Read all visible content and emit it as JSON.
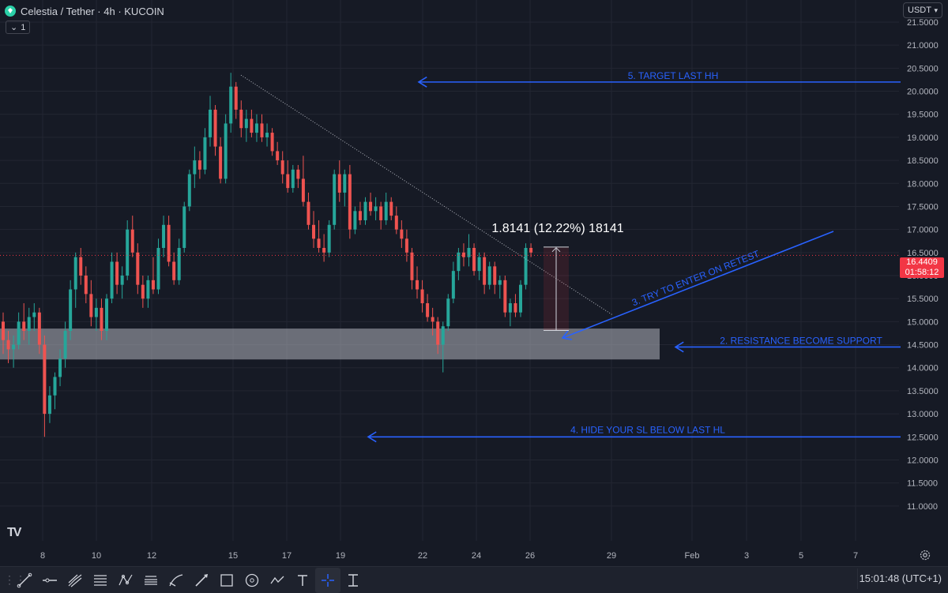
{
  "header": {
    "symbol": "Celestia / Tether · 4h · KUCOIN",
    "indicator_count": "1",
    "currency": "USDT"
  },
  "price_tag": {
    "price": "16.4409",
    "countdown": "01:58:12"
  },
  "annotations": {
    "target": "5. TARGET LAST HH",
    "retest": "3. TRY TO ENTER ON RETEST",
    "support": "2. RESISTANCE BECOME SUPPORT",
    "stoploss": "4. HIDE YOUR SL BELOW LAST HL",
    "measure": "1.8141 (12.22%) 18141"
  },
  "clock": "15:01:48 (UTC+1)",
  "colors": {
    "background": "#161a25",
    "up": "#26a69a",
    "down": "#ef5350",
    "annotation": "#2962ff",
    "zone": "#b2b5be"
  },
  "toolbar": {
    "tools": [
      "trend-line-icon",
      "horizontal-line-icon",
      "pitchfork-icon",
      "fib-icon",
      "pattern-icon",
      "brush-icon",
      "long-position-icon",
      "measure-icon",
      "arrow-icon",
      "rectangle-icon",
      "ellipse-icon",
      "path-icon",
      "text-icon",
      "crosshair-icon",
      "date-range-icon"
    ]
  },
  "chart_data": {
    "type": "candlestick",
    "y_axis": {
      "min": 10.5,
      "max": 21.5,
      "ticks": [
        "11.0000",
        "11.5000",
        "12.0000",
        "12.5000",
        "13.0000",
        "13.5000",
        "14.0000",
        "14.5000",
        "15.0000",
        "15.5000",
        "16.0000",
        "16.5000",
        "17.0000",
        "17.5000",
        "18.0000",
        "18.5000",
        "19.0000",
        "19.5000",
        "20.0000",
        "20.5000",
        "21.0000",
        "21.5000"
      ]
    },
    "x_axis": {
      "ticks": [
        "8",
        "10",
        "12",
        "15",
        "17",
        "19",
        "22",
        "24",
        "26",
        "29",
        "Feb",
        "3",
        "5",
        "7"
      ]
    },
    "ohlc": [
      [
        15.0,
        15.2,
        14.3,
        14.6
      ],
      [
        14.6,
        14.8,
        14.1,
        14.4
      ],
      [
        14.4,
        14.7,
        14.0,
        14.5
      ],
      [
        14.5,
        15.2,
        14.4,
        15.0
      ],
      [
        15.0,
        15.4,
        14.6,
        14.8
      ],
      [
        14.8,
        15.3,
        14.5,
        15.1
      ],
      [
        15.1,
        15.4,
        14.8,
        15.2
      ],
      [
        15.2,
        15.3,
        14.3,
        14.5
      ],
      [
        14.5,
        14.7,
        12.5,
        13.0
      ],
      [
        13.0,
        13.6,
        12.8,
        13.4
      ],
      [
        13.4,
        13.9,
        13.1,
        13.8
      ],
      [
        13.8,
        14.4,
        13.6,
        14.2
      ],
      [
        14.2,
        15.0,
        14.0,
        14.8
      ],
      [
        14.8,
        15.9,
        14.6,
        15.7
      ],
      [
        15.7,
        16.5,
        15.3,
        16.4
      ],
      [
        16.4,
        16.6,
        15.8,
        16.0
      ],
      [
        16.0,
        16.2,
        15.4,
        15.6
      ],
      [
        15.6,
        15.9,
        14.9,
        15.1
      ],
      [
        15.1,
        15.5,
        14.8,
        15.3
      ],
      [
        15.3,
        15.5,
        14.6,
        14.8
      ],
      [
        14.8,
        15.6,
        14.6,
        15.5
      ],
      [
        15.5,
        16.5,
        15.4,
        16.3
      ],
      [
        16.3,
        16.5,
        15.6,
        15.8
      ],
      [
        15.8,
        16.2,
        15.5,
        16.0
      ],
      [
        16.0,
        17.2,
        15.9,
        17.0
      ],
      [
        17.0,
        17.3,
        16.4,
        16.5
      ],
      [
        16.5,
        16.7,
        15.6,
        15.8
      ],
      [
        15.8,
        16.0,
        15.3,
        15.5
      ],
      [
        15.5,
        16.0,
        15.3,
        15.9
      ],
      [
        15.9,
        16.4,
        15.6,
        15.7
      ],
      [
        15.7,
        16.8,
        15.6,
        16.6
      ],
      [
        16.6,
        17.3,
        16.4,
        17.1
      ],
      [
        17.1,
        17.3,
        16.2,
        16.3
      ],
      [
        16.3,
        16.5,
        15.8,
        15.9
      ],
      [
        15.9,
        16.8,
        15.8,
        16.6
      ],
      [
        16.6,
        17.6,
        16.5,
        17.5
      ],
      [
        17.5,
        18.3,
        17.4,
        18.2
      ],
      [
        18.2,
        18.8,
        17.9,
        18.5
      ],
      [
        18.5,
        18.7,
        18.1,
        18.3
      ],
      [
        18.3,
        19.2,
        18.2,
        19.0
      ],
      [
        19.0,
        19.9,
        18.8,
        19.6
      ],
      [
        19.6,
        19.7,
        18.6,
        18.8
      ],
      [
        18.8,
        19.0,
        18.0,
        18.1
      ],
      [
        18.1,
        19.5,
        18.0,
        19.3
      ],
      [
        19.3,
        20.4,
        19.1,
        20.1
      ],
      [
        20.1,
        20.2,
        19.4,
        19.6
      ],
      [
        19.6,
        19.8,
        19.0,
        19.2
      ],
      [
        19.2,
        19.6,
        18.9,
        19.4
      ],
      [
        19.4,
        19.6,
        19.0,
        19.1
      ],
      [
        19.1,
        19.5,
        18.9,
        19.3
      ],
      [
        19.3,
        19.5,
        18.9,
        19.0
      ],
      [
        19.0,
        19.3,
        18.8,
        19.1
      ],
      [
        19.1,
        19.2,
        18.6,
        18.7
      ],
      [
        18.7,
        18.9,
        18.4,
        18.5
      ],
      [
        18.5,
        18.7,
        18.0,
        18.2
      ],
      [
        18.2,
        18.5,
        17.8,
        17.9
      ],
      [
        17.9,
        18.4,
        17.8,
        18.3
      ],
      [
        18.3,
        18.4,
        17.9,
        18.1
      ],
      [
        18.1,
        18.6,
        17.5,
        17.6
      ],
      [
        17.6,
        17.8,
        17.0,
        17.1
      ],
      [
        17.1,
        17.4,
        16.6,
        16.8
      ],
      [
        16.8,
        17.2,
        16.5,
        16.6
      ],
      [
        16.6,
        16.9,
        16.3,
        16.5
      ],
      [
        16.5,
        17.2,
        16.4,
        17.1
      ],
      [
        17.1,
        18.3,
        17.0,
        18.2
      ],
      [
        18.2,
        18.5,
        17.6,
        17.8
      ],
      [
        17.8,
        18.3,
        17.5,
        18.2
      ],
      [
        18.2,
        18.4,
        16.8,
        17.0
      ],
      [
        17.0,
        17.5,
        16.9,
        17.4
      ],
      [
        17.4,
        17.6,
        17.1,
        17.2
      ],
      [
        17.2,
        17.7,
        17.1,
        17.6
      ],
      [
        17.6,
        17.8,
        17.3,
        17.4
      ],
      [
        17.4,
        17.7,
        17.2,
        17.5
      ],
      [
        17.5,
        17.6,
        17.0,
        17.2
      ],
      [
        17.2,
        17.8,
        17.1,
        17.6
      ],
      [
        17.6,
        17.7,
        17.2,
        17.3
      ],
      [
        17.3,
        17.5,
        16.9,
        17.0
      ],
      [
        17.0,
        17.2,
        16.6,
        16.8
      ],
      [
        16.8,
        17.0,
        16.3,
        16.5
      ],
      [
        16.5,
        16.6,
        15.7,
        15.9
      ],
      [
        15.9,
        16.2,
        15.5,
        15.7
      ],
      [
        15.7,
        15.9,
        15.2,
        15.4
      ],
      [
        15.4,
        15.6,
        15.0,
        15.1
      ],
      [
        15.1,
        15.3,
        14.7,
        15.0
      ],
      [
        15.0,
        15.1,
        14.3,
        14.5
      ],
      [
        14.5,
        15.0,
        13.9,
        14.9
      ],
      [
        14.9,
        15.6,
        14.8,
        15.5
      ],
      [
        15.5,
        16.3,
        15.4,
        16.1
      ],
      [
        16.1,
        16.6,
        15.9,
        16.5
      ],
      [
        16.5,
        16.7,
        16.2,
        16.4
      ],
      [
        16.4,
        16.9,
        16.2,
        16.6
      ],
      [
        16.6,
        16.7,
        16.0,
        16.1
      ],
      [
        16.1,
        16.5,
        15.9,
        16.4
      ],
      [
        16.4,
        16.5,
        15.6,
        15.8
      ],
      [
        15.8,
        16.3,
        15.7,
        16.2
      ],
      [
        16.2,
        16.3,
        15.6,
        15.8
      ],
      [
        15.8,
        16.0,
        15.5,
        15.9
      ],
      [
        15.9,
        16.0,
        15.1,
        15.2
      ],
      [
        15.2,
        15.5,
        14.9,
        15.4
      ],
      [
        15.4,
        15.6,
        15.1,
        15.2
      ],
      [
        15.2,
        15.9,
        15.1,
        15.8
      ],
      [
        15.8,
        16.7,
        15.7,
        16.6
      ],
      [
        16.6,
        16.7,
        16.4,
        16.5
      ]
    ]
  }
}
